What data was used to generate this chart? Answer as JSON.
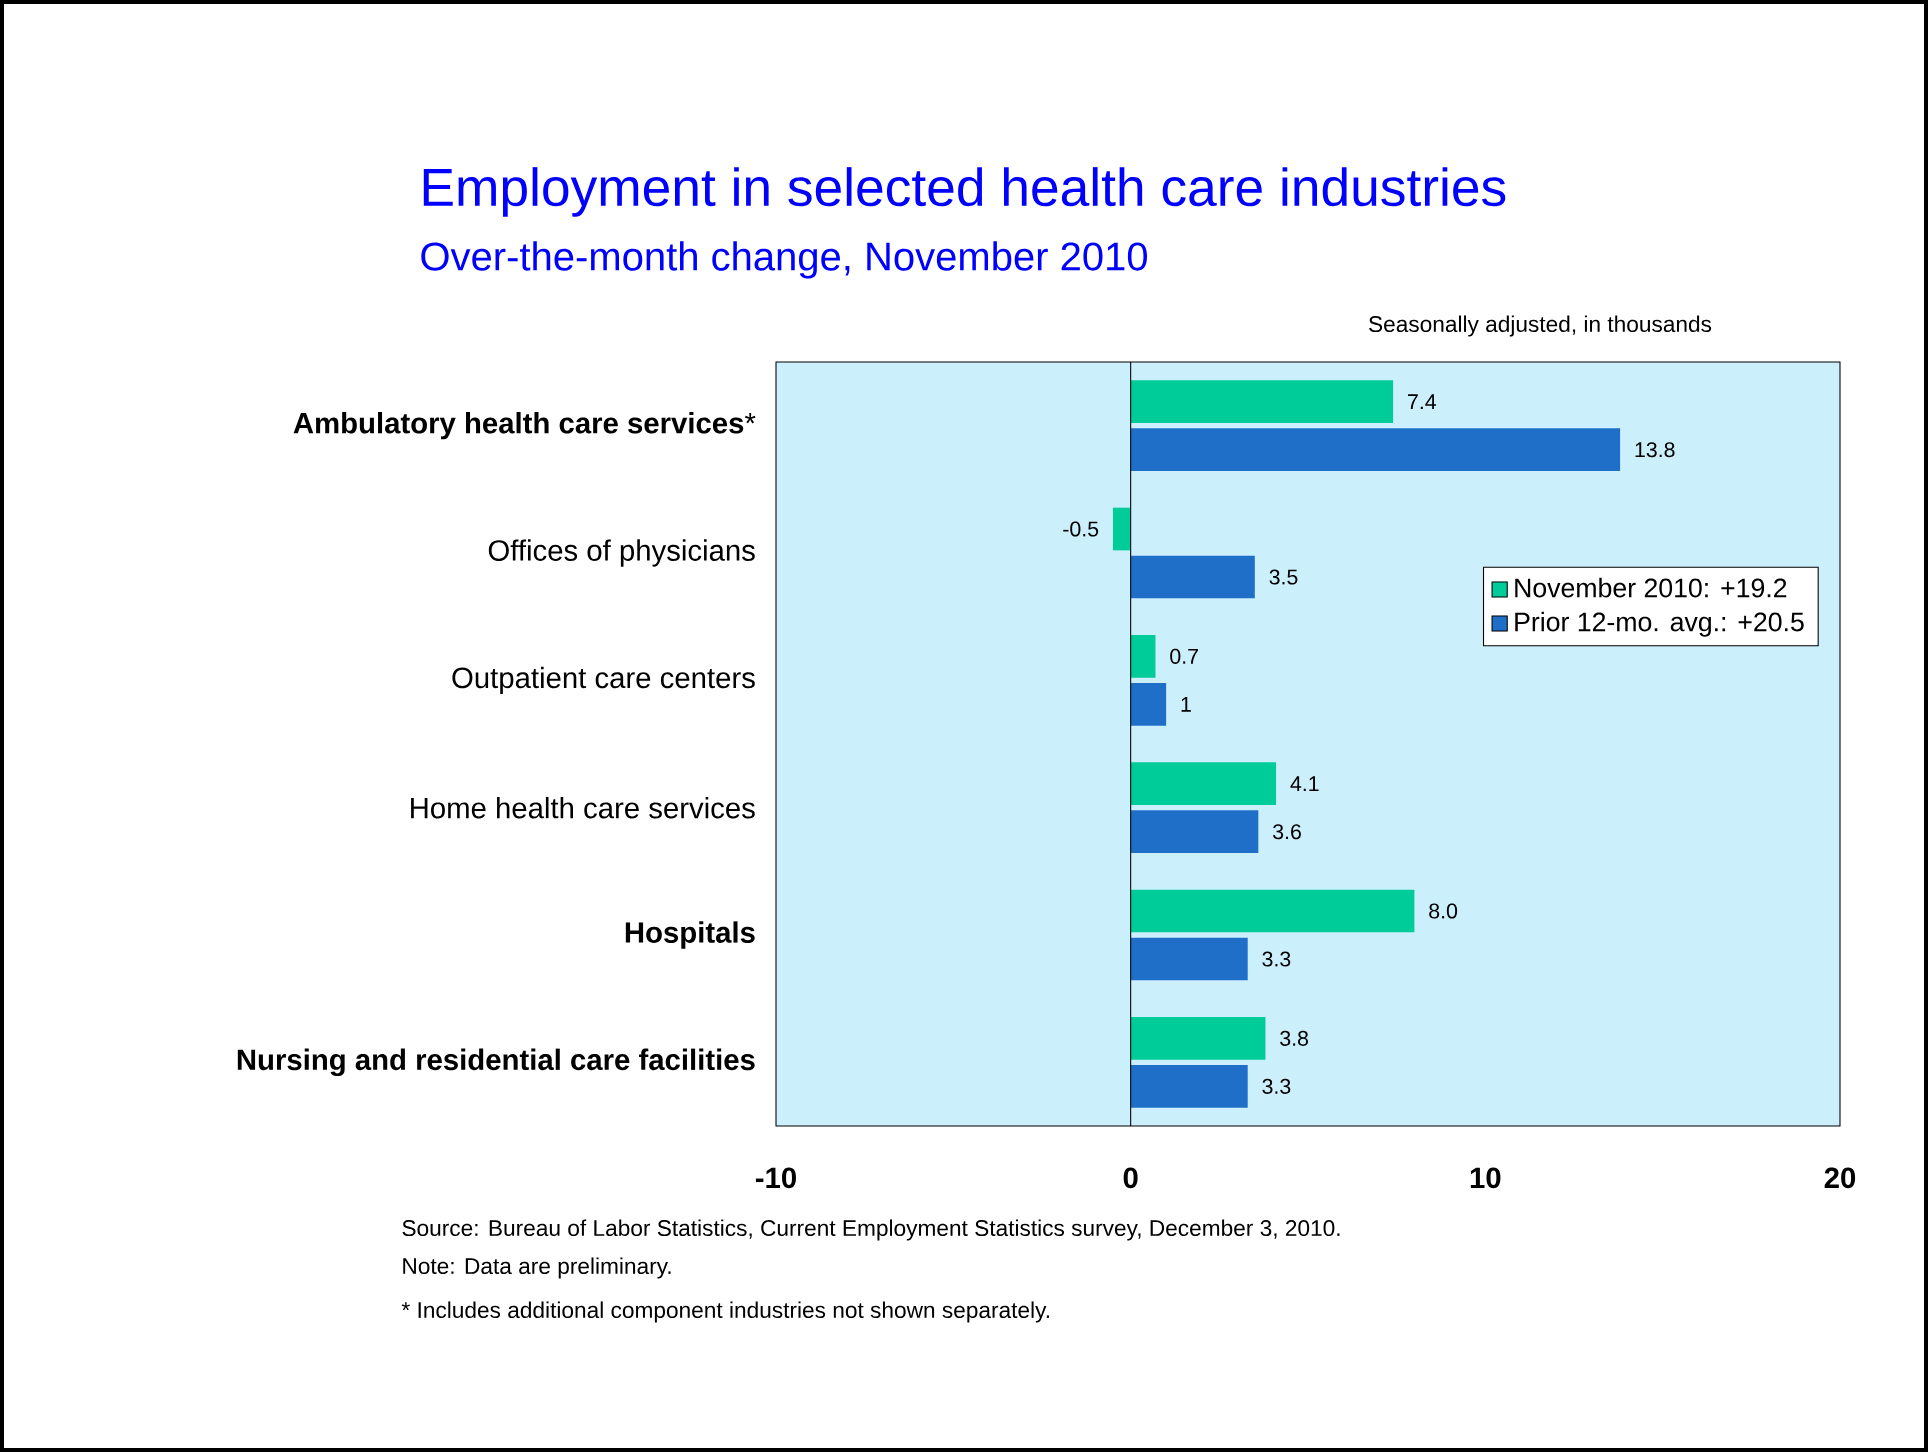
{
  "chart_data": {
    "type": "bar",
    "orientation": "horizontal",
    "title": "Employment in selected health care industries",
    "subtitle": "Over-the-month change, November 2010",
    "categories": [
      "**Ambulatory health care services***",
      "Offices of physicians",
      "Outpatient care centers",
      "Home health care services",
      "**Hospitals**",
      "**Nursing and residential care facilities**"
    ],
    "series": [
      {
        "name": "November 2010: +19.2",
        "color": "#00cc99",
        "values": [
          7.4,
          -0.5,
          0.7,
          4.1,
          8.0,
          3.8
        ],
        "value_labels": [
          "7.4",
          "-0.5",
          "0.7",
          "4.1",
          "8.0",
          "3.8"
        ]
      },
      {
        "name": "Prior 12-mo. avg.: +20.5",
        "color": "#1f6fc8",
        "values": [
          13.8,
          3.5,
          1,
          3.6,
          3.3,
          3.3
        ],
        "value_labels": [
          "13.8",
          "3.5",
          "1",
          "3.6",
          "3.3",
          "3.3"
        ]
      }
    ],
    "xlim": [
      -10,
      20
    ],
    "xticks": [
      -10,
      0,
      10,
      20
    ],
    "legend": "right",
    "annotations": [
      "Seasonally adjusted, in thousands",
      "Source:  Bureau of Labor Statistics, Current Employment Statistics survey, December 3, 2010.",
      "Note: Data are preliminary.",
      "* Includes additional component industries not shown separately."
    ]
  }
}
